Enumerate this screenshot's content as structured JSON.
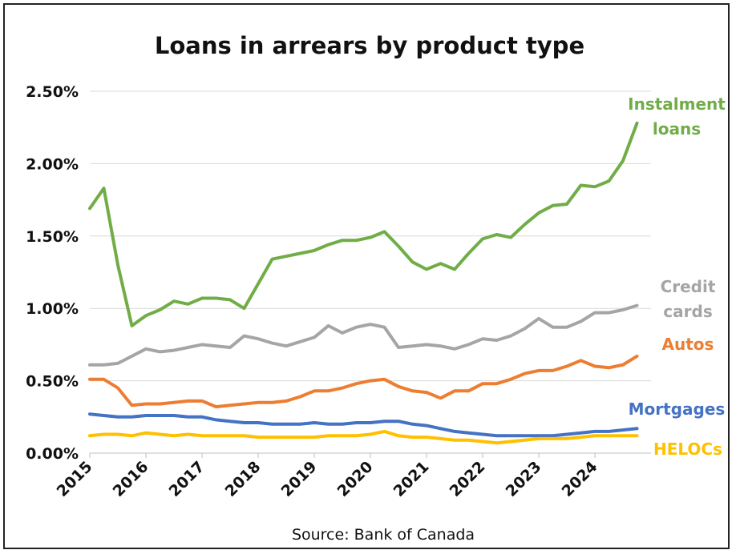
{
  "chart_data": {
    "type": "line",
    "title": "Loans in arrears by product type",
    "source": "Source: Bank of Canada",
    "xlabel": "",
    "ylabel": "",
    "ylim": [
      0,
      2.5
    ],
    "yticks": [
      "0.00%",
      "0.50%",
      "1.00%",
      "1.50%",
      "2.00%",
      "2.50%"
    ],
    "ytick_values": [
      0,
      0.5,
      1.0,
      1.5,
      2.0,
      2.5
    ],
    "xticks": [
      "2015",
      "2016",
      "2017",
      "2018",
      "2019",
      "2020",
      "2021",
      "2022",
      "2023",
      "2024"
    ],
    "xtick_values": [
      2015,
      2016,
      2017,
      2018,
      2019,
      2020,
      2021,
      2022,
      2023,
      2024
    ],
    "xlim": [
      2015,
      2025.0
    ],
    "grid": "horizontal",
    "x": [
      2015.0,
      2015.25,
      2015.5,
      2015.75,
      2016.0,
      2016.25,
      2016.5,
      2016.75,
      2017.0,
      2017.25,
      2017.5,
      2017.75,
      2018.0,
      2018.25,
      2018.5,
      2018.75,
      2019.0,
      2019.25,
      2019.5,
      2019.75,
      2020.0,
      2020.25,
      2020.5,
      2020.75,
      2021.0,
      2021.25,
      2021.5,
      2021.75,
      2022.0,
      2022.25,
      2022.5,
      2022.75,
      2023.0,
      2023.25,
      2023.5,
      2023.75,
      2024.0,
      2024.25,
      2024.5,
      2024.75
    ],
    "series": [
      {
        "name": "Instalment loans",
        "label_lines": [
          "Instalment",
          "loans"
        ],
        "color": "#70ad47",
        "values": [
          1.69,
          1.83,
          1.3,
          0.88,
          0.95,
          0.99,
          1.05,
          1.03,
          1.07,
          1.07,
          1.06,
          1.0,
          1.17,
          1.34,
          1.36,
          1.38,
          1.4,
          1.44,
          1.47,
          1.47,
          1.49,
          1.53,
          1.43,
          1.32,
          1.27,
          1.31,
          1.27,
          1.38,
          1.48,
          1.51,
          1.49,
          1.58,
          1.66,
          1.71,
          1.72,
          1.85,
          1.84,
          1.88,
          2.02,
          2.28
        ]
      },
      {
        "name": "Credit cards",
        "label_lines": [
          "Credit",
          "cards"
        ],
        "color": "#a5a5a5",
        "values": [
          0.61,
          0.61,
          0.62,
          0.67,
          0.72,
          0.7,
          0.71,
          0.73,
          0.75,
          0.74,
          0.73,
          0.81,
          0.79,
          0.76,
          0.74,
          0.77,
          0.8,
          0.88,
          0.83,
          0.87,
          0.89,
          0.87,
          0.73,
          0.74,
          0.75,
          0.74,
          0.72,
          0.75,
          0.79,
          0.78,
          0.81,
          0.86,
          0.93,
          0.87,
          0.87,
          0.91,
          0.97,
          0.97,
          0.99,
          1.02
        ]
      },
      {
        "name": "Autos",
        "label_lines": [
          "Autos"
        ],
        "color": "#ed7d31",
        "values": [
          0.51,
          0.51,
          0.45,
          0.33,
          0.34,
          0.34,
          0.35,
          0.36,
          0.36,
          0.32,
          0.33,
          0.34,
          0.35,
          0.35,
          0.36,
          0.39,
          0.43,
          0.43,
          0.45,
          0.48,
          0.5,
          0.51,
          0.46,
          0.43,
          0.42,
          0.38,
          0.43,
          0.43,
          0.48,
          0.48,
          0.51,
          0.55,
          0.57,
          0.57,
          0.6,
          0.64,
          0.6,
          0.59,
          0.61,
          0.67
        ]
      },
      {
        "name": "Mortgages",
        "label_lines": [
          "Mortgages"
        ],
        "color": "#4472c4",
        "values": [
          0.27,
          0.26,
          0.25,
          0.25,
          0.26,
          0.26,
          0.26,
          0.25,
          0.25,
          0.23,
          0.22,
          0.21,
          0.21,
          0.2,
          0.2,
          0.2,
          0.21,
          0.2,
          0.2,
          0.21,
          0.21,
          0.22,
          0.22,
          0.2,
          0.19,
          0.17,
          0.15,
          0.14,
          0.13,
          0.12,
          0.12,
          0.12,
          0.12,
          0.12,
          0.13,
          0.14,
          0.15,
          0.15,
          0.16,
          0.17
        ]
      },
      {
        "name": "HELOCs",
        "label_lines": [
          "HELOCs"
        ],
        "color": "#ffc000",
        "values": [
          0.12,
          0.13,
          0.13,
          0.12,
          0.14,
          0.13,
          0.12,
          0.13,
          0.12,
          0.12,
          0.12,
          0.12,
          0.11,
          0.11,
          0.11,
          0.11,
          0.11,
          0.12,
          0.12,
          0.12,
          0.13,
          0.15,
          0.12,
          0.11,
          0.11,
          0.1,
          0.09,
          0.09,
          0.08,
          0.07,
          0.08,
          0.09,
          0.1,
          0.1,
          0.1,
          0.11,
          0.12,
          0.12,
          0.12,
          0.12
        ]
      }
    ]
  }
}
